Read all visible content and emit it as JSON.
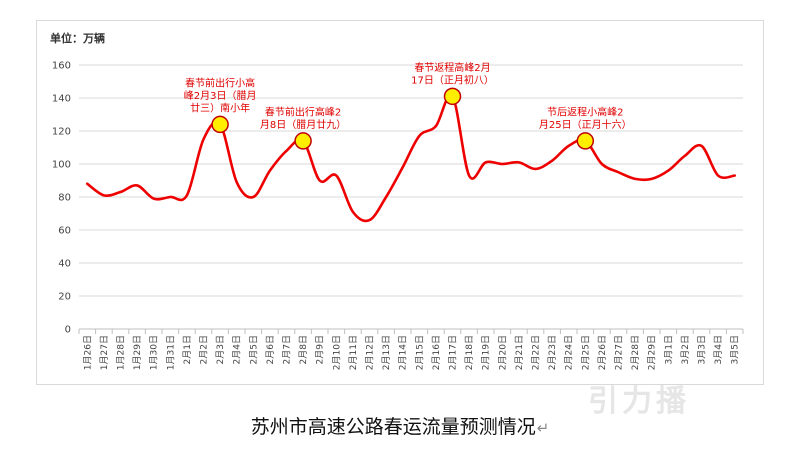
{
  "caption": "苏州市高速公路春运流量预测情况",
  "caption_mark": "↵",
  "watermark": "引力播",
  "chart_data": {
    "type": "line",
    "title": "",
    "unit_label": "单位：万辆",
    "ylim": [
      0,
      160
    ],
    "yticks": [
      0,
      20,
      40,
      60,
      80,
      100,
      120,
      140,
      160
    ],
    "grid": true,
    "line_color": "#ee0000",
    "marker_color": "#ffee00",
    "categories": [
      "1月26日",
      "1月27日",
      "1月28日",
      "1月29日",
      "1月30日",
      "1月31日",
      "2月1日",
      "2月2日",
      "2月3日",
      "2月4日",
      "2月5日",
      "2月6日",
      "2月7日",
      "2月8日",
      "2月9日",
      "2月10日",
      "2月11日",
      "2月12日",
      "2月13日",
      "2月14日",
      "2月15日",
      "2月16日",
      "2月17日",
      "2月18日",
      "2月19日",
      "2月20日",
      "2月21日",
      "2月22日",
      "2月23日",
      "2月24日",
      "2月25日",
      "2月26日",
      "2月27日",
      "2月28日",
      "2月29日",
      "3月1日",
      "3月2日",
      "3月3日",
      "3月4日",
      "3月5日"
    ],
    "values": [
      88,
      81,
      83,
      87,
      79,
      80,
      81,
      115,
      124,
      89,
      80,
      96,
      108,
      114,
      90,
      93,
      71,
      66,
      80,
      98,
      117,
      123,
      141,
      93,
      101,
      100,
      101,
      97,
      102,
      111,
      114,
      100,
      95,
      91,
      91,
      96,
      105,
      111,
      93,
      93
    ],
    "annotations": [
      {
        "index": 8,
        "lines": [
          "春节前出行小高",
          "峰2月3日（腊月",
          "廿三）南小年"
        ]
      },
      {
        "index": 13,
        "lines": [
          "春节前出行高峰2",
          "月8日（腊月廿九）"
        ]
      },
      {
        "index": 22,
        "lines": [
          "春节返程高峰2月",
          "17日（正月初八）"
        ]
      },
      {
        "index": 30,
        "lines": [
          "节后返程小高峰2",
          "月25日（正月十六）"
        ]
      }
    ]
  }
}
